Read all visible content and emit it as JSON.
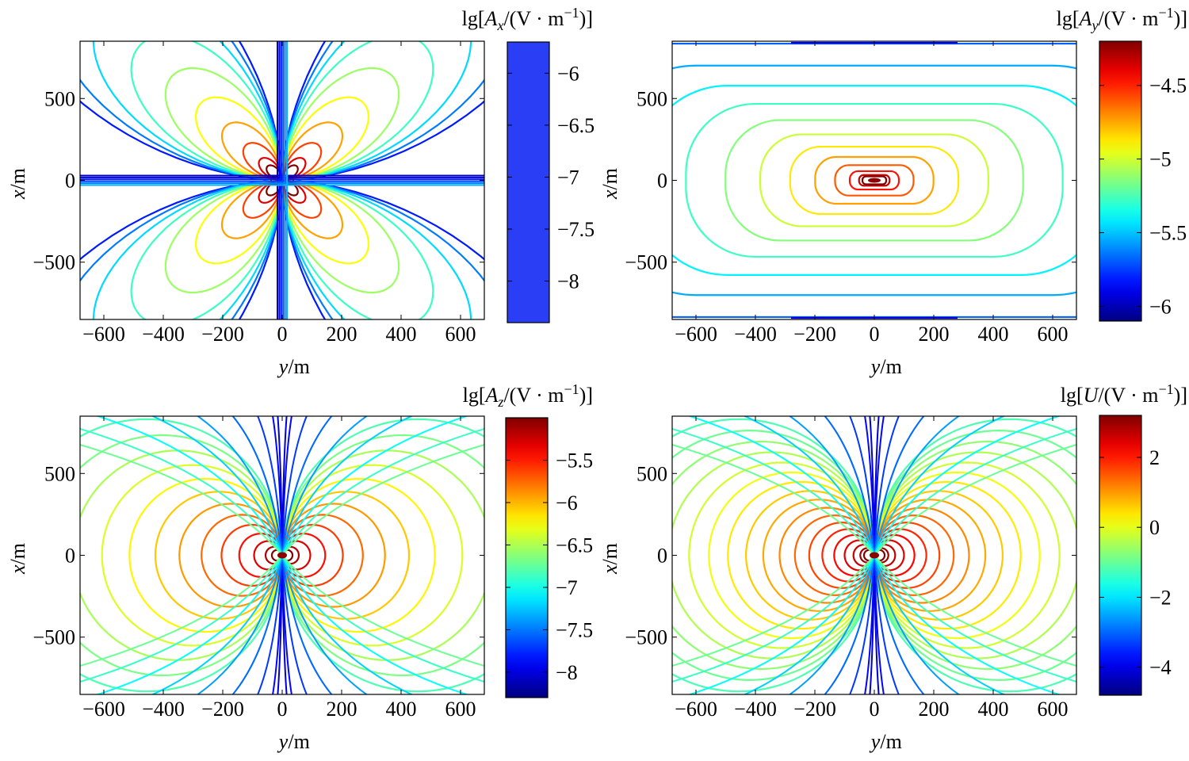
{
  "chart_data": [
    {
      "type": "contour",
      "id": "Ax",
      "title": {
        "prefix": "lg",
        "symbol": "A",
        "subscript": "x",
        "unit": "V · m",
        "exponent": "−1"
      },
      "xlabel": {
        "symbol": "y",
        "unit": "m"
      },
      "ylabel": {
        "symbol": "x",
        "unit": "m"
      },
      "xlim": [
        -680,
        680
      ],
      "ylim": [
        -850,
        850
      ],
      "xticks": [
        -600,
        -400,
        -200,
        0,
        200,
        400,
        600
      ],
      "xtick_labels": [
        "−600",
        "−400",
        "−200",
        "0",
        "200",
        "400",
        "600"
      ],
      "yticks": [
        500,
        0,
        -500
      ],
      "ytick_labels": [
        "500",
        "0",
        "−500"
      ],
      "pattern": "quadrupole",
      "levels": 10,
      "colorbar": {
        "range": [
          -8.4,
          -5.7
        ],
        "ticks": [
          -6,
          -6.5,
          -7,
          -7.5,
          -8
        ],
        "tick_labels": [
          "−6",
          "−6.5",
          "−7",
          "−7.5",
          "−8"
        ],
        "solid_color": "#2a3ef5"
      }
    },
    {
      "type": "contour",
      "id": "Ay",
      "title": {
        "prefix": "lg",
        "symbol": "A",
        "subscript": "y",
        "unit": "V · m",
        "exponent": "−1"
      },
      "xlabel": {
        "symbol": "y",
        "unit": "m"
      },
      "ylabel": {
        "symbol": "x",
        "unit": "m"
      },
      "xlim": [
        -680,
        680
      ],
      "ylim": [
        -850,
        850
      ],
      "xticks": [
        -600,
        -400,
        -200,
        0,
        200,
        400,
        600
      ],
      "xtick_labels": [
        "−600",
        "−400",
        "−200",
        "0",
        "200",
        "400",
        "600"
      ],
      "yticks": [
        500,
        0,
        -500
      ],
      "ytick_labels": [
        "500",
        "0",
        "−500"
      ],
      "pattern": "monopole",
      "levels": 14,
      "colorbar": {
        "range": [
          -6.1,
          -4.2
        ],
        "ticks": [
          -4.5,
          -5,
          -5.5,
          -6
        ],
        "tick_labels": [
          "−4.5",
          "−5",
          "−5.5",
          "−6"
        ]
      }
    },
    {
      "type": "contour",
      "id": "Az",
      "title": {
        "prefix": "lg",
        "symbol": "A",
        "subscript": "z",
        "unit": "V · m",
        "exponent": "−1"
      },
      "xlabel": {
        "symbol": "y",
        "unit": "m"
      },
      "ylabel": {
        "symbol": "x",
        "unit": "m"
      },
      "xlim": [
        -680,
        680
      ],
      "ylim": [
        -850,
        850
      ],
      "xticks": [
        -600,
        -400,
        -200,
        0,
        200,
        400,
        600
      ],
      "xtick_labels": [
        "−600",
        "−400",
        "−200",
        "0",
        "200",
        "400",
        "600"
      ],
      "yticks": [
        500,
        0,
        -500
      ],
      "ytick_labels": [
        "500",
        "0",
        "−500"
      ],
      "pattern": "dipole",
      "levels": 13,
      "colorbar": {
        "range": [
          -8.3,
          -5.0
        ],
        "ticks": [
          -5.5,
          -6,
          -6.5,
          -7,
          -7.5,
          -8
        ],
        "tick_labels": [
          "−5.5",
          "−6",
          "−6.5",
          "−7",
          "−7.5",
          "−8"
        ]
      }
    },
    {
      "type": "contour",
      "id": "U",
      "title": {
        "prefix": "lg",
        "symbol": "U",
        "subscript": "",
        "unit": "V · m",
        "exponent": "−1"
      },
      "xlabel": {
        "symbol": "y",
        "unit": "m"
      },
      "ylabel": {
        "symbol": "x",
        "unit": "m"
      },
      "xlim": [
        -680,
        680
      ],
      "ylim": [
        -850,
        850
      ],
      "xticks": [
        -600,
        -400,
        -200,
        0,
        200,
        400,
        600
      ],
      "xtick_labels": [
        "−600",
        "−400",
        "−200",
        "0",
        "200",
        "400",
        "600"
      ],
      "yticks": [
        500,
        0,
        -500
      ],
      "ytick_labels": [
        "500",
        "0",
        "−500"
      ],
      "pattern": "dipole",
      "levels": 18,
      "colorbar": {
        "range": [
          -4.8,
          3.2
        ],
        "ticks": [
          2,
          0,
          -2,
          -4
        ],
        "tick_labels": [
          "2",
          "0",
          "−2",
          "−4"
        ]
      }
    }
  ]
}
